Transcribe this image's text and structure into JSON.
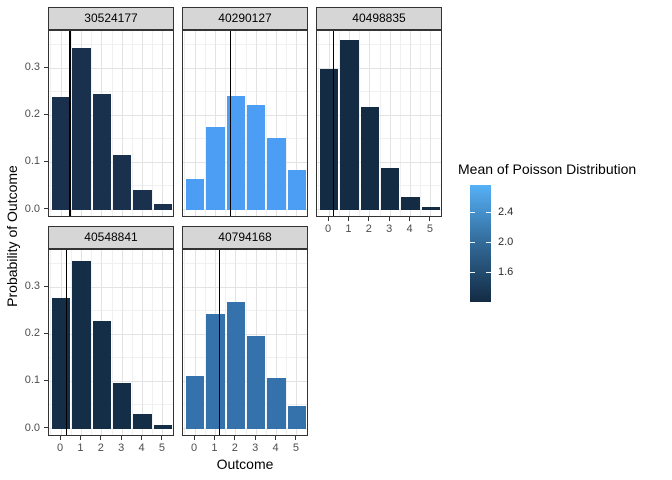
{
  "chart_data": {
    "type": "bar",
    "title": "",
    "x_axis_label": "Outcome",
    "y_axis_label": "Probability of Outcome",
    "categories": [
      0,
      1,
      2,
      3,
      4,
      5
    ],
    "x_tick_labels": [
      "0",
      "1",
      "2",
      "3",
      "4",
      "5"
    ],
    "y_tick_labels": [
      "0.0",
      "0.1",
      "0.2",
      "0.3"
    ],
    "y_ticks": [
      0,
      0.1,
      0.2,
      0.3
    ],
    "xlim": [
      -0.59,
      5.59
    ],
    "ylim": [
      -0.018,
      0.379
    ],
    "grid": true,
    "legend_position": "right",
    "facet_variable_values": [
      "30524177",
      "40290127",
      "40498835",
      "40548841",
      "40794168"
    ],
    "series": [
      {
        "name": "30524177",
        "row": 0,
        "col": 0,
        "values": [
          0.2393,
          0.3422,
          0.2447,
          0.1166,
          0.0417,
          0.0119
        ],
        "poisson_mean": 1.43,
        "vline_x": 0.43,
        "color": "#1a314e"
      },
      {
        "name": "40290127",
        "row": 0,
        "col": 1,
        "values": [
          0.0639,
          0.1758,
          0.2417,
          0.2216,
          0.1523,
          0.0838
        ],
        "poisson_mean": 2.75,
        "vline_x": 1.75,
        "color": "#4b9ef3"
      },
      {
        "name": "40498835",
        "row": 0,
        "col": 2,
        "values": [
          0.2982,
          0.3608,
          0.2183,
          0.088,
          0.0266,
          0.0064
        ],
        "poisson_mean": 1.21,
        "vline_x": 0.21,
        "color": "#132b43"
      },
      {
        "name": "40548841",
        "row": 1,
        "col": 0,
        "values": [
          0.278,
          0.3559,
          0.2278,
          0.0972,
          0.0311,
          0.008
        ],
        "poisson_mean": 1.28,
        "vline_x": 0.28,
        "color": "#152e48"
      },
      {
        "name": "40794168",
        "row": 1,
        "col": 1,
        "values": [
          0.1108,
          0.2438,
          0.2681,
          0.1966,
          0.1082,
          0.0476
        ],
        "poisson_mean": 2.2,
        "vline_x": 1.2,
        "color": "#3572ac"
      }
    ]
  },
  "legend": {
    "title": "Mean of Poisson Distribution",
    "domain": [
      1.21,
      2.75
    ],
    "ticks": [
      {
        "label": "2.4",
        "value": 2.4
      },
      {
        "label": "2.0",
        "value": 2.0
      },
      {
        "label": "1.6",
        "value": 1.6
      }
    ],
    "gradient_top": "#56b1f7",
    "gradient_mid": "#326a98",
    "gradient_bottom": "#132b43"
  },
  "theme": {
    "strip_background": "#d6d6d6",
    "panel_border": "#333333",
    "grid_major": "#e3e3e3",
    "grid_minor": "#f0f0f0",
    "axis_text": "#4d4d4d",
    "vline_color": "#000000"
  }
}
